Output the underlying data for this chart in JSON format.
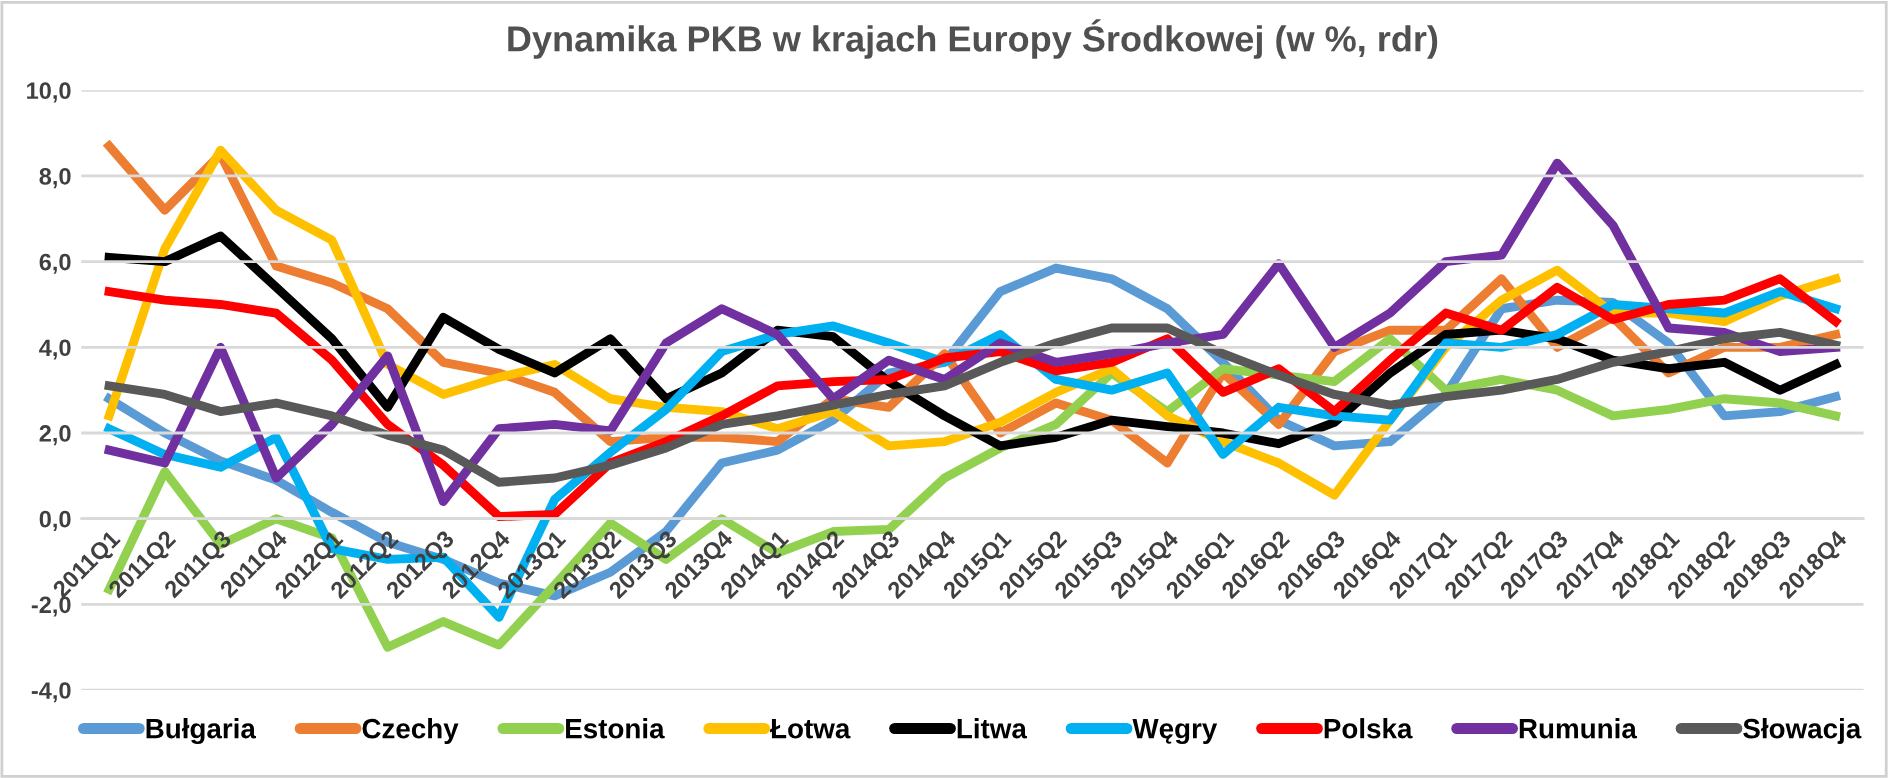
{
  "chart_data": {
    "type": "line",
    "title": "Dynamika PKB w krajach Europy Środkowej (w %, rdr)",
    "categories": [
      "2011Q1",
      "2011Q2",
      "2011Q3",
      "2011Q4",
      "2012Q1",
      "2012Q2",
      "2012Q3",
      "2012Q4",
      "2013Q1",
      "2013Q2",
      "2013Q3",
      "2013Q4",
      "2014Q1",
      "2014Q2",
      "2014Q3",
      "2014Q4",
      "2015Q1",
      "2015Q2",
      "2015Q3",
      "2015Q4",
      "2016Q1",
      "2016Q2",
      "2016Q3",
      "2016Q4",
      "2017Q1",
      "2017Q2",
      "2017Q3",
      "2017Q4",
      "2018Q1",
      "2018Q2",
      "2018Q3",
      "2018Q4"
    ],
    "series": [
      {
        "name": "Bułgaria",
        "color": "#5b9bd5",
        "values": [
          2.8,
          2.0,
          1.35,
          0.9,
          0.15,
          -0.55,
          -0.95,
          -1.5,
          -1.8,
          -1.25,
          -0.3,
          1.3,
          1.6,
          2.3,
          3.4,
          3.65,
          5.3,
          5.85,
          5.6,
          4.9,
          3.65,
          2.3,
          1.7,
          1.8,
          2.9,
          4.9,
          5.1,
          5.05,
          4.1,
          2.4,
          2.5,
          2.85
        ]
      },
      {
        "name": "Czechy",
        "color": "#ed7d31",
        "values": [
          8.7,
          7.2,
          8.5,
          5.9,
          5.5,
          4.9,
          3.65,
          3.4,
          2.95,
          1.8,
          1.9,
          1.9,
          1.8,
          2.8,
          2.6,
          3.85,
          2.0,
          2.7,
          2.3,
          1.3,
          3.4,
          2.2,
          3.9,
          4.4,
          4.4,
          5.6,
          4.0,
          4.7,
          3.4,
          4.0,
          4.0,
          4.3
        ]
      },
      {
        "name": "Estonia",
        "color": "#92d050",
        "values": [
          -1.65,
          1.1,
          -0.6,
          0.0,
          -0.45,
          -3.0,
          -2.4,
          -2.95,
          -1.55,
          -0.1,
          -0.95,
          0.0,
          -0.8,
          -0.3,
          -0.25,
          0.95,
          1.65,
          2.2,
          3.4,
          2.5,
          3.5,
          3.35,
          3.2,
          4.2,
          3.0,
          3.25,
          3.0,
          2.4,
          2.55,
          2.8,
          2.7,
          2.4
        ]
      },
      {
        "name": "Łotwa",
        "color": "#ffc000",
        "values": [
          2.4,
          6.3,
          8.6,
          7.2,
          6.5,
          3.6,
          2.9,
          3.3,
          3.6,
          2.8,
          2.6,
          2.5,
          2.1,
          2.5,
          1.7,
          1.8,
          2.25,
          2.95,
          3.5,
          2.4,
          1.8,
          1.3,
          0.55,
          2.3,
          4.0,
          5.1,
          5.8,
          4.8,
          4.8,
          4.6,
          5.2,
          5.6
        ]
      },
      {
        "name": "Litwa",
        "color": "#000000",
        "values": [
          6.1,
          6.0,
          6.6,
          5.4,
          4.2,
          2.6,
          4.7,
          3.95,
          3.4,
          4.2,
          2.8,
          3.4,
          4.4,
          4.25,
          3.2,
          2.4,
          1.7,
          1.9,
          2.3,
          2.15,
          2.0,
          1.75,
          2.25,
          3.4,
          4.3,
          4.4,
          4.2,
          3.7,
          3.5,
          3.65,
          3.0,
          3.6
        ]
      },
      {
        "name": "Węgry",
        "color": "#00b0f0",
        "values": [
          2.1,
          1.5,
          1.2,
          1.9,
          -0.7,
          -0.95,
          -0.9,
          -2.3,
          0.45,
          1.55,
          2.55,
          3.9,
          4.3,
          4.5,
          4.1,
          3.65,
          4.3,
          3.25,
          3.0,
          3.4,
          1.5,
          2.6,
          2.4,
          2.3,
          4.1,
          4.0,
          4.3,
          5.0,
          4.9,
          4.8,
          5.3,
          4.9
        ]
      },
      {
        "name": "Polska",
        "color": "#ff0000",
        "values": [
          5.3,
          5.1,
          5.0,
          4.8,
          3.7,
          2.2,
          1.25,
          0.05,
          0.1,
          1.3,
          1.8,
          2.4,
          3.1,
          3.2,
          3.25,
          3.75,
          3.9,
          3.45,
          3.65,
          4.2,
          2.95,
          3.5,
          2.5,
          3.7,
          4.8,
          4.4,
          5.4,
          4.65,
          5.0,
          5.1,
          5.6,
          4.6
        ]
      },
      {
        "name": "Rumunia",
        "color": "#7030a0",
        "values": [
          1.6,
          1.3,
          4.0,
          0.95,
          2.2,
          3.8,
          0.4,
          2.1,
          2.2,
          2.05,
          4.1,
          4.9,
          4.3,
          2.8,
          3.7,
          3.25,
          4.1,
          3.65,
          3.85,
          4.1,
          4.3,
          5.95,
          4.0,
          4.8,
          6.0,
          6.15,
          8.3,
          6.85,
          4.45,
          4.35,
          3.9,
          4.0
        ]
      },
      {
        "name": "Słowacja",
        "color": "#595959",
        "values": [
          3.1,
          2.9,
          2.5,
          2.7,
          2.4,
          1.95,
          1.6,
          0.85,
          0.95,
          1.25,
          1.65,
          2.2,
          2.4,
          2.65,
          2.9,
          3.1,
          3.65,
          4.1,
          4.45,
          4.45,
          3.85,
          3.35,
          2.9,
          2.65,
          2.85,
          3.0,
          3.25,
          3.65,
          3.9,
          4.2,
          4.35,
          4.05
        ]
      }
    ],
    "ylim": [
      -4,
      10
    ],
    "yticks": [
      {
        "value": -4,
        "label": "-4,0"
      },
      {
        "value": -2,
        "label": "-2,0"
      },
      {
        "value": 0,
        "label": "0,0"
      },
      {
        "value": 2,
        "label": "2,0"
      },
      {
        "value": 4,
        "label": "4,0"
      },
      {
        "value": 6,
        "label": "6,0"
      },
      {
        "value": 8,
        "label": "8,0"
      },
      {
        "value": 10,
        "label": "10,0"
      }
    ],
    "grid": "y",
    "legend": "bottom",
    "marker": "none",
    "line_style": "solid"
  }
}
